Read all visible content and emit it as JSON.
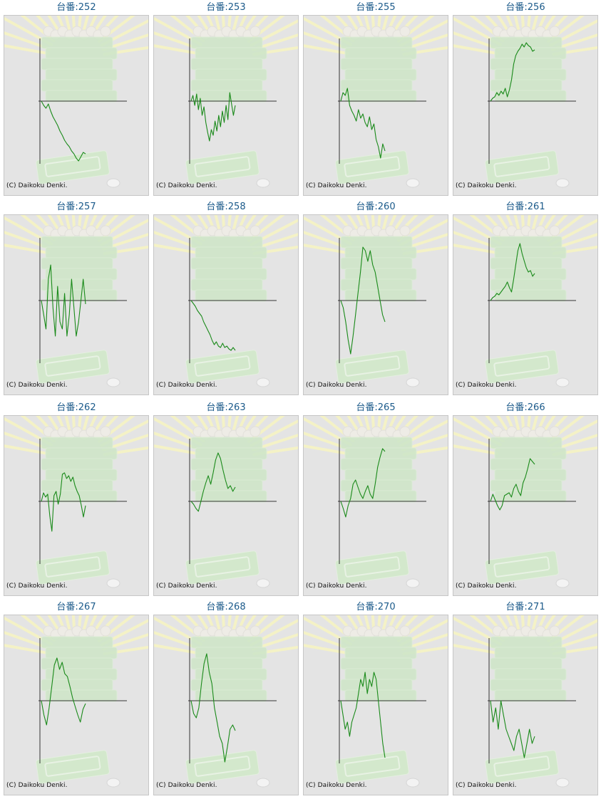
{
  "colors": {
    "title": "#1b5a8a",
    "line": "#1a8a1a",
    "axis": "#333333",
    "panel_bg": "#e4e4e4"
  },
  "copyright": "(C) Daikoku Denki.",
  "machines": [
    {
      "title": "台番:252",
      "trend": [
        0,
        -6,
        -10,
        -4,
        -14,
        -22,
        -28,
        -34,
        -42,
        -48,
        -55,
        -60,
        -64,
        -70,
        -74,
        -80,
        -84,
        -78,
        -72,
        -74
      ]
    },
    {
      "title": "台番:253",
      "trend": [
        0,
        8,
        -6,
        10,
        -12,
        4,
        -20,
        -8,
        -30,
        -44,
        -56,
        -40,
        -48,
        -28,
        -42,
        -20,
        -36,
        -14,
        -30,
        -6,
        -26,
        12,
        -4,
        -20,
        -6
      ]
    },
    {
      "title": "台番:255",
      "trend": [
        0,
        12,
        8,
        18,
        -6,
        -14,
        -20,
        -28,
        -12,
        -24,
        -18,
        -30,
        -36,
        -22,
        -40,
        -32,
        -54,
        -64,
        -80,
        -60,
        -70
      ]
    },
    {
      "title": "台番:256",
      "trend": [
        0,
        4,
        6,
        12,
        8,
        14,
        10,
        18,
        6,
        16,
        30,
        52,
        64,
        70,
        74,
        80,
        76,
        82,
        78,
        76,
        70,
        72
      ]
    },
    {
      "title": "台番:257",
      "trend": [
        0,
        -20,
        -40,
        30,
        50,
        -10,
        -50,
        20,
        -30,
        -40,
        10,
        -50,
        -20,
        30,
        -10,
        -50,
        -30,
        0,
        30,
        -5
      ]
    },
    {
      "title": "台番:258",
      "trend": [
        0,
        -4,
        -8,
        -14,
        -18,
        -22,
        -30,
        -36,
        -42,
        -48,
        -56,
        -62,
        -58,
        -64,
        -66,
        -60,
        -66,
        -64,
        -68,
        -70,
        -66,
        -70
      ]
    },
    {
      "title": "台番:260",
      "trend": [
        0,
        -10,
        -30,
        -55,
        -75,
        -50,
        -20,
        10,
        40,
        75,
        70,
        55,
        70,
        50,
        40,
        20,
        0,
        -20,
        -30
      ]
    },
    {
      "title": "台番:261",
      "trend": [
        0,
        4,
        6,
        10,
        8,
        12,
        16,
        20,
        26,
        18,
        12,
        30,
        50,
        70,
        80,
        66,
        56,
        46,
        40,
        42,
        34,
        38
      ]
    },
    {
      "title": "台番:262",
      "trend": [
        0,
        12,
        6,
        10,
        -20,
        -42,
        8,
        14,
        -4,
        10,
        38,
        40,
        32,
        36,
        28,
        34,
        22,
        14,
        8,
        -6,
        -22,
        -6
      ]
    },
    {
      "title": "台番:263",
      "trend": [
        0,
        -4,
        -10,
        -14,
        0,
        14,
        26,
        36,
        24,
        40,
        58,
        68,
        60,
        44,
        30,
        18,
        22,
        14,
        20
      ]
    },
    {
      "title": "台番:265",
      "trend": [
        0,
        -10,
        -22,
        -6,
        4,
        24,
        30,
        20,
        10,
        4,
        14,
        22,
        10,
        4,
        24,
        48,
        62,
        74,
        70
      ]
    },
    {
      "title": "台番:266",
      "trend": [
        0,
        10,
        2,
        -6,
        -12,
        -6,
        8,
        10,
        12,
        6,
        18,
        24,
        14,
        8,
        26,
        34,
        46,
        60,
        56,
        52
      ]
    },
    {
      "title": "台番:267",
      "trend": [
        0,
        -20,
        -34,
        -10,
        20,
        50,
        60,
        44,
        54,
        38,
        34,
        20,
        4,
        -8,
        -20,
        -30,
        -12,
        -4
      ]
    },
    {
      "title": "台番:268",
      "trend": [
        0,
        -18,
        -24,
        -10,
        24,
        52,
        66,
        40,
        24,
        -10,
        -30,
        -50,
        -60,
        -86,
        -64,
        -40,
        -34,
        -42
      ]
    },
    {
      "title": "台番:270",
      "trend": [
        0,
        -20,
        -40,
        -30,
        -50,
        -30,
        -20,
        -10,
        10,
        30,
        20,
        40,
        10,
        30,
        20,
        40,
        30,
        0,
        -30,
        -60,
        -80
      ]
    },
    {
      "title": "台番:271",
      "trend": [
        0,
        -30,
        -10,
        -40,
        0,
        -20,
        -40,
        -50,
        -60,
        -70,
        -50,
        -40,
        -60,
        -80,
        -60,
        -40,
        -60,
        -50
      ]
    }
  ]
}
